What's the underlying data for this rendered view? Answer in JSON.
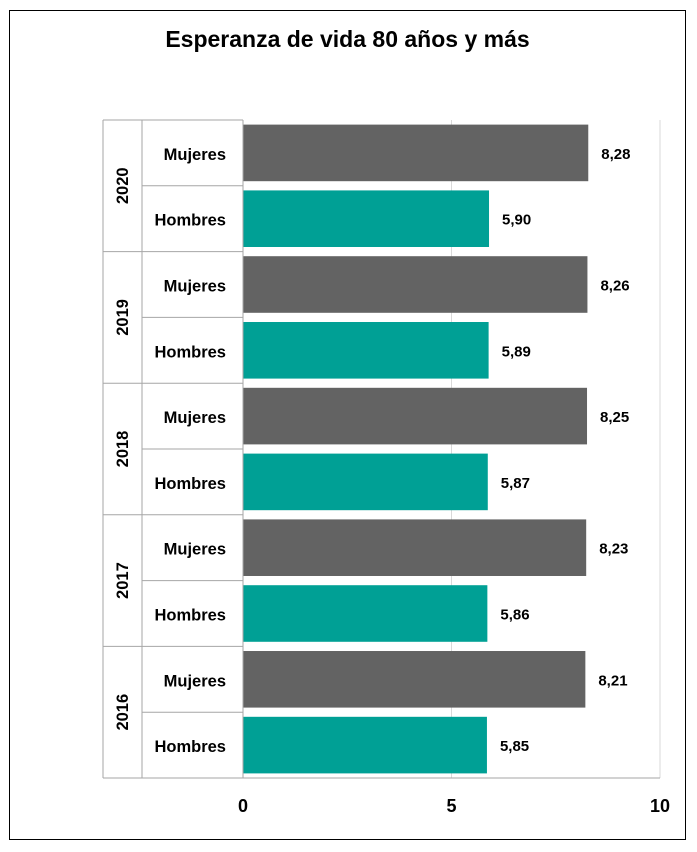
{
  "chart_data": {
    "type": "bar",
    "orientation": "horizontal",
    "title": "Esperanza de vida 80 años y más",
    "groups": [
      "2020",
      "2019",
      "2018",
      "2017",
      "2016"
    ],
    "categories": [
      "Mujeres",
      "Hombres"
    ],
    "values": [
      [
        8.28,
        5.9
      ],
      [
        8.26,
        5.89
      ],
      [
        8.25,
        5.87
      ],
      [
        8.23,
        5.86
      ],
      [
        8.21,
        5.85
      ]
    ],
    "value_labels": [
      [
        "8,28",
        "5,90"
      ],
      [
        "8,26",
        "5,89"
      ],
      [
        "8,25",
        "5,87"
      ],
      [
        "8,23",
        "5,86"
      ],
      [
        "8,21",
        "5,85"
      ]
    ],
    "colors": {
      "Mujeres": "#636363",
      "Hombres": "#00a095"
    },
    "xlim": [
      0,
      10
    ],
    "xticks": [
      0,
      5,
      10
    ],
    "grid": true
  }
}
